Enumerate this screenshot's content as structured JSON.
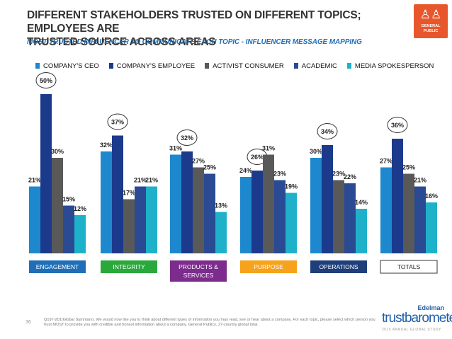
{
  "header": {
    "title_line1": "DIFFERENT STAKEHOLDERS TRUSTED ON DIFFERENT TOPICS; EMPLOYEES ARE",
    "title_line2": "TRUSTED SOURCE ACROSS AREAS",
    "subtitle": "MOST TRUSTED INFLUENCER TO COMMUNICATE EACH TOPIC - INFLUENCER MESSAGE MAPPING"
  },
  "badge": {
    "icon": "people-figures-icon",
    "line1": "GENERAL",
    "line2": "PUBLIC",
    "color": "#e8572b"
  },
  "footer": {
    "page_number": "36",
    "note": "Q197-201(Global Summary). We would now like you to think about different types of information you may read, see or hear about a company. For each topic, please select which person you trust MOST to provide you with credible and honest information about a company. General Publics, 27-country global total.",
    "logo_brand": "Edelman",
    "logo_name": "trustbarometer",
    "logo_tag": "2015 ANNUAL GLOBAL STUDY"
  },
  "chart_data": {
    "type": "bar",
    "title": "MOST TRUSTED INFLUENCER TO COMMUNICATE EACH TOPIC - INFLUENCER MESSAGE MAPPING",
    "xlabel": "",
    "ylabel": "",
    "ylim": [
      0,
      50
    ],
    "grid": false,
    "legend_position": "top",
    "value_suffix": "%",
    "categories": [
      "ENGAGEMENT",
      "INTEGRITY",
      "PRODUCTS &\nSERVICES",
      "PURPOSE",
      "OPERATIONS",
      "TOTALS"
    ],
    "category_colors": [
      "#1f6fb8",
      "#2aa83c",
      "#7b2c8c",
      "#f6a21b",
      "#1f3f7a",
      "#ffffff"
    ],
    "category_text_colors": [
      "#ffffff",
      "#ffffff",
      "#ffffff",
      "#ffffff",
      "#ffffff",
      "#222222"
    ],
    "series": [
      {
        "name": "COMPANY'S CEO",
        "color": "#1e88cf",
        "values": [
          21,
          32,
          31,
          24,
          30,
          27
        ]
      },
      {
        "name": "COMPANY'S EMPLOYEE",
        "color": "#1b3a8c",
        "values": [
          50,
          37,
          32,
          26,
          34,
          36
        ]
      },
      {
        "name": "ACTIVIST CONSUMER",
        "color": "#595959",
        "values": [
          30,
          17,
          27,
          31,
          23,
          25
        ]
      },
      {
        "name": "ACADEMIC",
        "color": "#2a4a94",
        "values": [
          15,
          21,
          25,
          23,
          22,
          21
        ]
      },
      {
        "name": "MEDIA SPOKESPERSON",
        "color": "#1fb1c9",
        "values": [
          12,
          21,
          13,
          19,
          14,
          16
        ]
      }
    ],
    "highlight_series": "COMPANY'S EMPLOYEE"
  }
}
